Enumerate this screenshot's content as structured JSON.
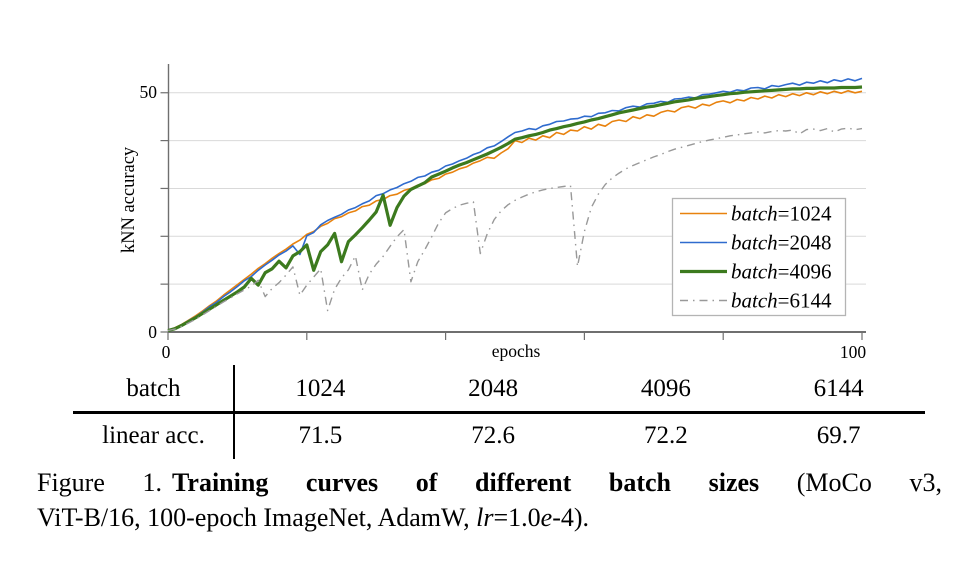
{
  "colors": {
    "background": "#ffffff",
    "axis": "#6f6f6f",
    "grid": "#d9d9d9",
    "legend_border": "#b4b4b4",
    "orange": "#e8820e",
    "blue": "#2f6bce",
    "green": "#3c7a1e",
    "gray": "#999999"
  },
  "chart_data": {
    "type": "line",
    "title": "",
    "xlabel": "epochs",
    "ylabel": "kNN accuracy",
    "xlim": [
      0,
      100
    ],
    "ylim": [
      0,
      55.8
    ],
    "xticks": [
      0,
      20,
      40,
      60,
      80,
      100
    ],
    "xtick_labels": [
      "0",
      "",
      "",
      "",
      "",
      "100"
    ],
    "yticks": [
      0,
      10,
      20,
      30,
      40,
      50
    ],
    "ytick_labels": [
      "0",
      "",
      "",
      "",
      "",
      "50"
    ],
    "grid": "horizontal",
    "legend_position": "lower right",
    "x_start": 0,
    "x_step": 1,
    "series": [
      {
        "name": "batch=1024",
        "color": "#e8820e",
        "line_width": 1.6,
        "dash": "solid",
        "values": [
          0.3,
          0.9,
          1.6,
          2.5,
          3.4,
          4.4,
          5.5,
          6.5,
          7.7,
          8.8,
          9.9,
          11.0,
          12.1,
          13.3,
          14.3,
          15.4,
          16.4,
          17.3,
          18.4,
          19.2,
          20.4,
          21.0,
          22.1,
          22.7,
          23.7,
          24.1,
          24.9,
          25.3,
          26.2,
          26.5,
          27.4,
          27.7,
          28.5,
          28.8,
          29.6,
          30.0,
          30.7,
          31.0,
          31.8,
          32.1,
          33.0,
          33.4,
          34.1,
          34.5,
          35.3,
          35.8,
          36.5,
          36.3,
          37.4,
          38.3,
          40.0,
          39.6,
          40.5,
          40.1,
          41.0,
          40.6,
          41.7,
          41.3,
          42.2,
          42.0,
          42.9,
          42.4,
          43.4,
          43.0,
          44.0,
          44.3,
          44.0,
          45.0,
          44.6,
          45.4,
          45.1,
          45.9,
          46.3,
          46.0,
          46.9,
          47.2,
          46.8,
          47.6,
          47.3,
          48.0,
          48.3,
          47.9,
          48.6,
          48.3,
          49.0,
          48.7,
          49.3,
          48.9,
          49.6,
          49.2,
          49.8,
          49.4,
          50.0,
          49.6,
          50.2,
          49.8,
          50.3,
          49.9,
          50.4,
          50.0,
          50.3
        ]
      },
      {
        "name": "batch=2048",
        "color": "#2f6bce",
        "line_width": 1.6,
        "dash": "solid",
        "values": [
          0.3,
          0.8,
          1.5,
          2.4,
          3.2,
          4.2,
          5.3,
          6.2,
          7.4,
          8.4,
          9.5,
          10.7,
          11.6,
          12.9,
          14.0,
          15.0,
          16.1,
          16.9,
          18.0,
          16.2,
          20.1,
          20.8,
          22.4,
          23.3,
          24.0,
          24.6,
          25.5,
          26.0,
          26.8,
          27.4,
          28.5,
          28.9,
          29.7,
          30.2,
          31.0,
          31.5,
          32.3,
          32.6,
          33.4,
          33.8,
          34.7,
          35.1,
          35.8,
          36.3,
          37.1,
          37.6,
          38.5,
          38.9,
          39.8,
          40.8,
          41.7,
          42.0,
          42.5,
          42.3,
          43.1,
          43.4,
          44.0,
          44.1,
          44.5,
          44.6,
          45.1,
          45.0,
          45.7,
          45.8,
          46.3,
          46.2,
          46.9,
          47.2,
          47.0,
          47.7,
          47.8,
          48.2,
          48.0,
          48.7,
          48.8,
          49.1,
          48.9,
          49.6,
          49.7,
          50.0,
          50.3,
          50.1,
          50.6,
          50.4,
          51.0,
          51.1,
          50.8,
          51.5,
          51.3,
          51.7,
          52.0,
          51.6,
          52.2,
          52.0,
          52.5,
          52.1,
          52.7,
          52.4,
          52.9,
          52.5,
          53.0
        ]
      },
      {
        "name": "batch=4096",
        "color": "#3c7a1e",
        "line_width": 3.2,
        "dash": "solid",
        "values": [
          0.3,
          0.7,
          1.4,
          2.2,
          3.0,
          3.9,
          4.8,
          5.7,
          6.6,
          7.5,
          8.4,
          9.4,
          11.2,
          9.8,
          12.4,
          13.2,
          14.8,
          13.4,
          15.9,
          16.8,
          18.2,
          12.9,
          16.8,
          18.2,
          20.6,
          14.7,
          18.9,
          20.3,
          21.8,
          23.4,
          25.1,
          28.6,
          22.3,
          26.0,
          28.4,
          29.8,
          30.5,
          31.2,
          32.4,
          33.0,
          33.6,
          34.3,
          34.9,
          35.4,
          36.0,
          36.6,
          37.2,
          37.9,
          38.6,
          39.4,
          40.3,
          40.6,
          41.0,
          41.3,
          41.7,
          42.2,
          42.5,
          42.9,
          43.2,
          43.6,
          43.9,
          44.3,
          44.6,
          45.0,
          45.4,
          45.8,
          46.1,
          46.4,
          46.7,
          47.0,
          47.2,
          47.5,
          47.8,
          48.1,
          48.3,
          48.5,
          48.8,
          49.0,
          49.2,
          49.4,
          49.6,
          49.8,
          49.9,
          50.1,
          50.2,
          50.3,
          50.4,
          50.5,
          50.6,
          50.7,
          50.8,
          50.8,
          50.9,
          50.9,
          51.0,
          51.0,
          51.0,
          51.1,
          51.1,
          51.1,
          51.2
        ]
      },
      {
        "name": "batch=6144",
        "color": "#999999",
        "line_width": 1.4,
        "dash": "dashdot",
        "values": [
          0.3,
          0.6,
          1.2,
          1.9,
          2.7,
          3.6,
          4.5,
          5.4,
          6.3,
          7.1,
          8.0,
          8.8,
          9.6,
          10.8,
          7.4,
          9.1,
          10.3,
          11.9,
          13.6,
          7.7,
          9.8,
          11.5,
          13.2,
          4.5,
          8.9,
          11.3,
          13.0,
          15.9,
          8.8,
          12.1,
          14.2,
          15.8,
          17.9,
          19.9,
          21.4,
          10.5,
          14.7,
          17.2,
          19.9,
          22.8,
          24.9,
          25.8,
          26.5,
          26.9,
          27.2,
          16.4,
          20.5,
          23.5,
          25.3,
          26.6,
          27.5,
          28.2,
          28.8,
          29.3,
          29.7,
          30.0,
          30.2,
          30.4,
          30.6,
          13.7,
          21.0,
          26.0,
          28.8,
          30.8,
          32.2,
          33.2,
          34.1,
          34.8,
          35.4,
          36.0,
          36.6,
          37.1,
          37.7,
          38.2,
          38.6,
          39.0,
          39.4,
          39.8,
          40.1,
          40.4,
          40.7,
          41.0,
          41.2,
          41.4,
          41.6,
          41.8,
          41.6,
          41.9,
          42.1,
          42.0,
          42.2,
          41.4,
          42.3,
          42.4,
          42.1,
          42.5,
          41.8,
          42.4,
          42.6,
          42.3,
          42.5
        ]
      }
    ]
  },
  "table": {
    "header_label": "batch",
    "row_label": "linear acc.",
    "batch_sizes": [
      "1024",
      "2048",
      "4096",
      "6144"
    ],
    "linear_acc": [
      "71.5",
      "72.6",
      "72.2",
      "69.7"
    ]
  },
  "caption": {
    "figure_label": "Figure 1.",
    "bold_text": "Training curves of different batch sizes",
    "after_bold": "(MoCo v3,",
    "line2_text": "ViT-B/16, 100-epoch ImageNet, AdamW, ",
    "lr_italic": "lr",
    "lr_value": "=1.0",
    "e_italic": "e",
    "tail": "-4)."
  }
}
